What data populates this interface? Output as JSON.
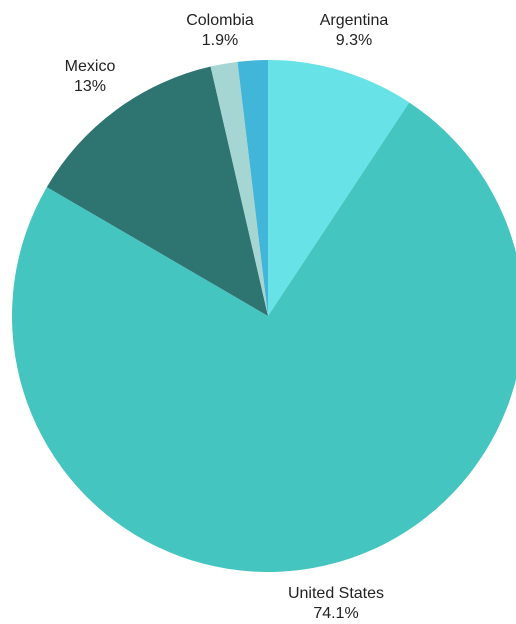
{
  "chart_data": {
    "type": "pie",
    "start_angle_deg": -90,
    "direction": "counterclockwise",
    "slices": [
      {
        "label": "Argentina",
        "value": 9.3,
        "value_label": "9.3%",
        "color": "#67e2e6"
      },
      {
        "label": "United States",
        "value": 74.1,
        "value_label": "74.1%",
        "color": "#45c5c0"
      },
      {
        "label": "Mexico",
        "value": 13,
        "value_label": "13%",
        "color": "#2e7470"
      },
      {
        "label": "",
        "value": 1.7,
        "value_label": "",
        "color": "#a6d6d4"
      },
      {
        "label": "Colombia",
        "value": 1.9,
        "value_label": "1.9%",
        "color": "#41b6d8"
      }
    ],
    "legend": "none"
  }
}
